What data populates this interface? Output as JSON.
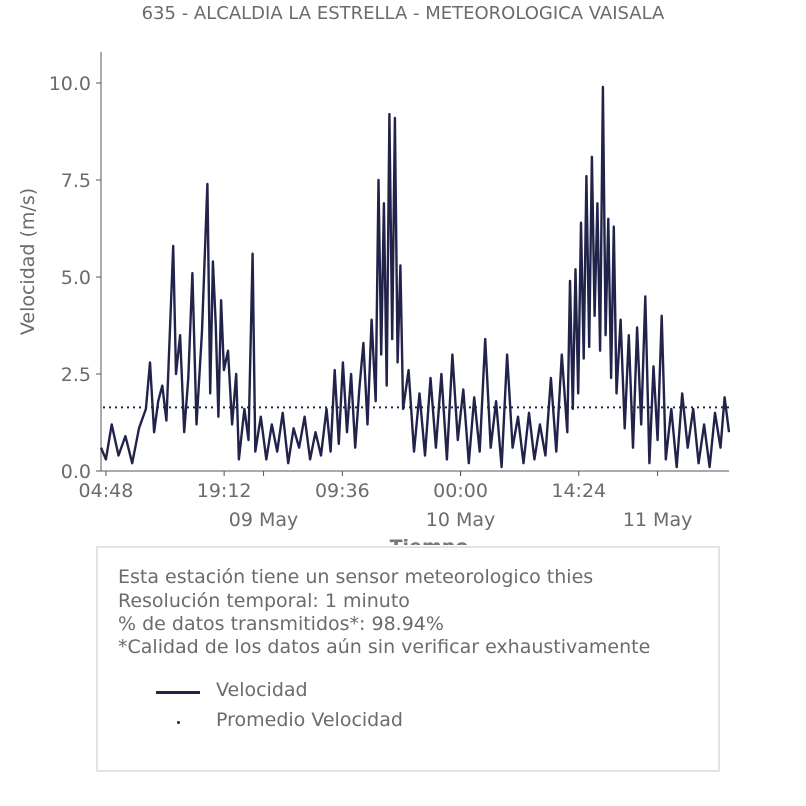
{
  "title": "635 - ALCALDIA LA ESTRELLA - METEOROLOGICA VAISALA",
  "colors": {
    "series": "#22234a",
    "text": "#6b6b6b",
    "axis": "#555555"
  },
  "info": {
    "lines": [
      "Esta estación tiene un sensor meteorologico thies",
      "Resolución temporal: 1 minuto",
      "% de datos transmitidos*: 98.94%",
      "*Calidad de los datos aún sin verificar exhaustivamente"
    ]
  },
  "chart_data": {
    "type": "line",
    "title": "635 - ALCALDIA LA ESTRELLA - METEOROLOGICA VAISALA",
    "xlabel": "Tiempo",
    "ylabel": "Velocidad (m/s)",
    "ylim": [
      0,
      10.8
    ],
    "xlim": [
      "2019-05-08 04:12",
      "2019-05-11 08:42"
    ],
    "yticks": [
      "0.0",
      "2.5",
      "5.0",
      "7.5",
      "10.0"
    ],
    "xticks": [
      {
        "at": "2019-05-08 04:48",
        "label": "04:48"
      },
      {
        "at": "2019-05-08 19:12",
        "label": "19:12"
      },
      {
        "at": "2019-05-09 09:36",
        "label": "09:36"
      },
      {
        "at": "2019-05-10 00:00",
        "label": "00:00"
      },
      {
        "at": "2019-05-10 14:24",
        "label": "14:24"
      }
    ],
    "date_labels": [
      {
        "at": "2019-05-09 00:00",
        "label": "09 May"
      },
      {
        "at": "2019-05-10 00:00",
        "label": "10 May"
      },
      {
        "at": "2019-05-11 00:00",
        "label": "11 May"
      }
    ],
    "grid": false,
    "legend": "below",
    "series": [
      {
        "name": "Velocidad",
        "style": "solid",
        "points": [
          [
            "2019-05-08 04:12",
            0.6
          ],
          [
            "2019-05-08 04:48",
            0.3
          ],
          [
            "2019-05-08 05:30",
            1.2
          ],
          [
            "2019-05-08 06:20",
            0.4
          ],
          [
            "2019-05-08 07:10",
            0.9
          ],
          [
            "2019-05-08 08:00",
            0.2
          ],
          [
            "2019-05-08 08:50",
            1.1
          ],
          [
            "2019-05-08 09:40",
            1.6
          ],
          [
            "2019-05-08 10:10",
            2.8
          ],
          [
            "2019-05-08 10:40",
            1.0
          ],
          [
            "2019-05-08 11:10",
            1.8
          ],
          [
            "2019-05-08 11:40",
            2.2
          ],
          [
            "2019-05-08 12:10",
            1.3
          ],
          [
            "2019-05-08 12:40",
            4.0
          ],
          [
            "2019-05-08 13:00",
            5.8
          ],
          [
            "2019-05-08 13:20",
            2.5
          ],
          [
            "2019-05-08 13:50",
            3.5
          ],
          [
            "2019-05-08 14:20",
            1.0
          ],
          [
            "2019-05-08 14:50",
            2.4
          ],
          [
            "2019-05-08 15:20",
            5.1
          ],
          [
            "2019-05-08 15:50",
            1.2
          ],
          [
            "2019-05-08 16:30",
            3.6
          ],
          [
            "2019-05-08 17:10",
            7.4
          ],
          [
            "2019-05-08 17:30",
            2.0
          ],
          [
            "2019-05-08 17:50",
            5.4
          ],
          [
            "2019-05-08 18:10",
            3.8
          ],
          [
            "2019-05-08 18:30",
            1.4
          ],
          [
            "2019-05-08 18:50",
            4.4
          ],
          [
            "2019-05-08 19:10",
            2.6
          ],
          [
            "2019-05-08 19:40",
            3.1
          ],
          [
            "2019-05-08 20:10",
            1.2
          ],
          [
            "2019-05-08 20:40",
            2.5
          ],
          [
            "2019-05-08 21:00",
            0.3
          ],
          [
            "2019-05-08 21:40",
            1.6
          ],
          [
            "2019-05-08 22:10",
            0.8
          ],
          [
            "2019-05-08 22:40",
            5.6
          ],
          [
            "2019-05-08 23:00",
            0.5
          ],
          [
            "2019-05-08 23:40",
            1.4
          ],
          [
            "2019-05-09 00:20",
            0.3
          ],
          [
            "2019-05-09 01:00",
            1.2
          ],
          [
            "2019-05-09 01:40",
            0.5
          ],
          [
            "2019-05-09 02:20",
            1.5
          ],
          [
            "2019-05-09 03:00",
            0.2
          ],
          [
            "2019-05-09 03:40",
            1.1
          ],
          [
            "2019-05-09 04:20",
            0.6
          ],
          [
            "2019-05-09 05:00",
            1.4
          ],
          [
            "2019-05-09 05:40",
            0.3
          ],
          [
            "2019-05-09 06:20",
            1.0
          ],
          [
            "2019-05-09 07:00",
            0.4
          ],
          [
            "2019-05-09 07:40",
            1.6
          ],
          [
            "2019-05-09 08:10",
            0.5
          ],
          [
            "2019-05-09 08:40",
            2.6
          ],
          [
            "2019-05-09 09:10",
            0.7
          ],
          [
            "2019-05-09 09:40",
            2.8
          ],
          [
            "2019-05-09 10:10",
            1.0
          ],
          [
            "2019-05-09 10:40",
            2.5
          ],
          [
            "2019-05-09 11:10",
            0.6
          ],
          [
            "2019-05-09 11:40",
            2.1
          ],
          [
            "2019-05-09 12:10",
            3.3
          ],
          [
            "2019-05-09 12:40",
            1.2
          ],
          [
            "2019-05-09 13:10",
            3.9
          ],
          [
            "2019-05-09 13:40",
            1.8
          ],
          [
            "2019-05-09 14:00",
            7.5
          ],
          [
            "2019-05-09 14:20",
            3.0
          ],
          [
            "2019-05-09 14:40",
            6.9
          ],
          [
            "2019-05-09 15:00",
            2.2
          ],
          [
            "2019-05-09 15:20",
            9.2
          ],
          [
            "2019-05-09 15:40",
            3.4
          ],
          [
            "2019-05-09 16:00",
            9.1
          ],
          [
            "2019-05-09 16:20",
            2.8
          ],
          [
            "2019-05-09 16:40",
            5.3
          ],
          [
            "2019-05-09 17:00",
            1.6
          ],
          [
            "2019-05-09 17:40",
            2.6
          ],
          [
            "2019-05-09 18:20",
            0.5
          ],
          [
            "2019-05-09 19:00",
            2.0
          ],
          [
            "2019-05-09 19:40",
            0.4
          ],
          [
            "2019-05-09 20:20",
            2.4
          ],
          [
            "2019-05-09 21:00",
            0.6
          ],
          [
            "2019-05-09 21:40",
            2.5
          ],
          [
            "2019-05-09 22:20",
            0.3
          ],
          [
            "2019-05-09 23:00",
            3.0
          ],
          [
            "2019-05-09 23:40",
            0.8
          ],
          [
            "2019-05-10 00:20",
            2.1
          ],
          [
            "2019-05-10 01:00",
            0.2
          ],
          [
            "2019-05-10 01:40",
            1.9
          ],
          [
            "2019-05-10 02:20",
            0.5
          ],
          [
            "2019-05-10 03:00",
            3.4
          ],
          [
            "2019-05-10 03:40",
            0.6
          ],
          [
            "2019-05-10 04:20",
            1.8
          ],
          [
            "2019-05-10 05:00",
            0.1
          ],
          [
            "2019-05-10 05:40",
            3.0
          ],
          [
            "2019-05-10 06:20",
            0.6
          ],
          [
            "2019-05-10 07:00",
            1.4
          ],
          [
            "2019-05-10 07:40",
            0.2
          ],
          [
            "2019-05-10 08:20",
            1.5
          ],
          [
            "2019-05-10 09:00",
            0.3
          ],
          [
            "2019-05-10 09:40",
            1.2
          ],
          [
            "2019-05-10 10:20",
            0.4
          ],
          [
            "2019-05-10 11:00",
            2.4
          ],
          [
            "2019-05-10 11:40",
            0.5
          ],
          [
            "2019-05-10 12:20",
            3.0
          ],
          [
            "2019-05-10 13:00",
            1.0
          ],
          [
            "2019-05-10 13:20",
            4.9
          ],
          [
            "2019-05-10 13:40",
            1.6
          ],
          [
            "2019-05-10 14:00",
            5.2
          ],
          [
            "2019-05-10 14:20",
            2.0
          ],
          [
            "2019-05-10 14:40",
            6.4
          ],
          [
            "2019-05-10 15:00",
            2.9
          ],
          [
            "2019-05-10 15:20",
            7.6
          ],
          [
            "2019-05-10 15:40",
            3.2
          ],
          [
            "2019-05-10 16:00",
            8.1
          ],
          [
            "2019-05-10 16:20",
            4.0
          ],
          [
            "2019-05-10 16:40",
            6.9
          ],
          [
            "2019-05-10 17:00",
            3.1
          ],
          [
            "2019-05-10 17:20",
            9.9
          ],
          [
            "2019-05-10 17:40",
            3.5
          ],
          [
            "2019-05-10 18:00",
            6.5
          ],
          [
            "2019-05-10 18:20",
            2.4
          ],
          [
            "2019-05-10 18:40",
            6.3
          ],
          [
            "2019-05-10 19:00",
            2.0
          ],
          [
            "2019-05-10 19:30",
            3.9
          ],
          [
            "2019-05-10 20:00",
            1.1
          ],
          [
            "2019-05-10 20:30",
            3.5
          ],
          [
            "2019-05-10 21:00",
            0.6
          ],
          [
            "2019-05-10 21:30",
            3.7
          ],
          [
            "2019-05-10 22:00",
            1.2
          ],
          [
            "2019-05-10 22:30",
            4.5
          ],
          [
            "2019-05-10 23:00",
            0.2
          ],
          [
            "2019-05-10 23:30",
            2.7
          ],
          [
            "2019-05-11 00:00",
            0.8
          ],
          [
            "2019-05-11 00:30",
            4.0
          ],
          [
            "2019-05-11 01:00",
            0.3
          ],
          [
            "2019-05-11 01:40",
            1.6
          ],
          [
            "2019-05-11 02:20",
            0.1
          ],
          [
            "2019-05-11 03:00",
            2.0
          ],
          [
            "2019-05-11 03:40",
            0.6
          ],
          [
            "2019-05-11 04:20",
            1.6
          ],
          [
            "2019-05-11 05:00",
            0.2
          ],
          [
            "2019-05-11 05:40",
            1.2
          ],
          [
            "2019-05-11 06:20",
            0.1
          ],
          [
            "2019-05-11 07:00",
            1.5
          ],
          [
            "2019-05-11 07:40",
            0.6
          ],
          [
            "2019-05-11 08:10",
            1.9
          ],
          [
            "2019-05-11 08:42",
            1.0
          ]
        ]
      },
      {
        "name": "Promedio Velocidad",
        "style": "dotted",
        "value": 1.64
      }
    ]
  }
}
